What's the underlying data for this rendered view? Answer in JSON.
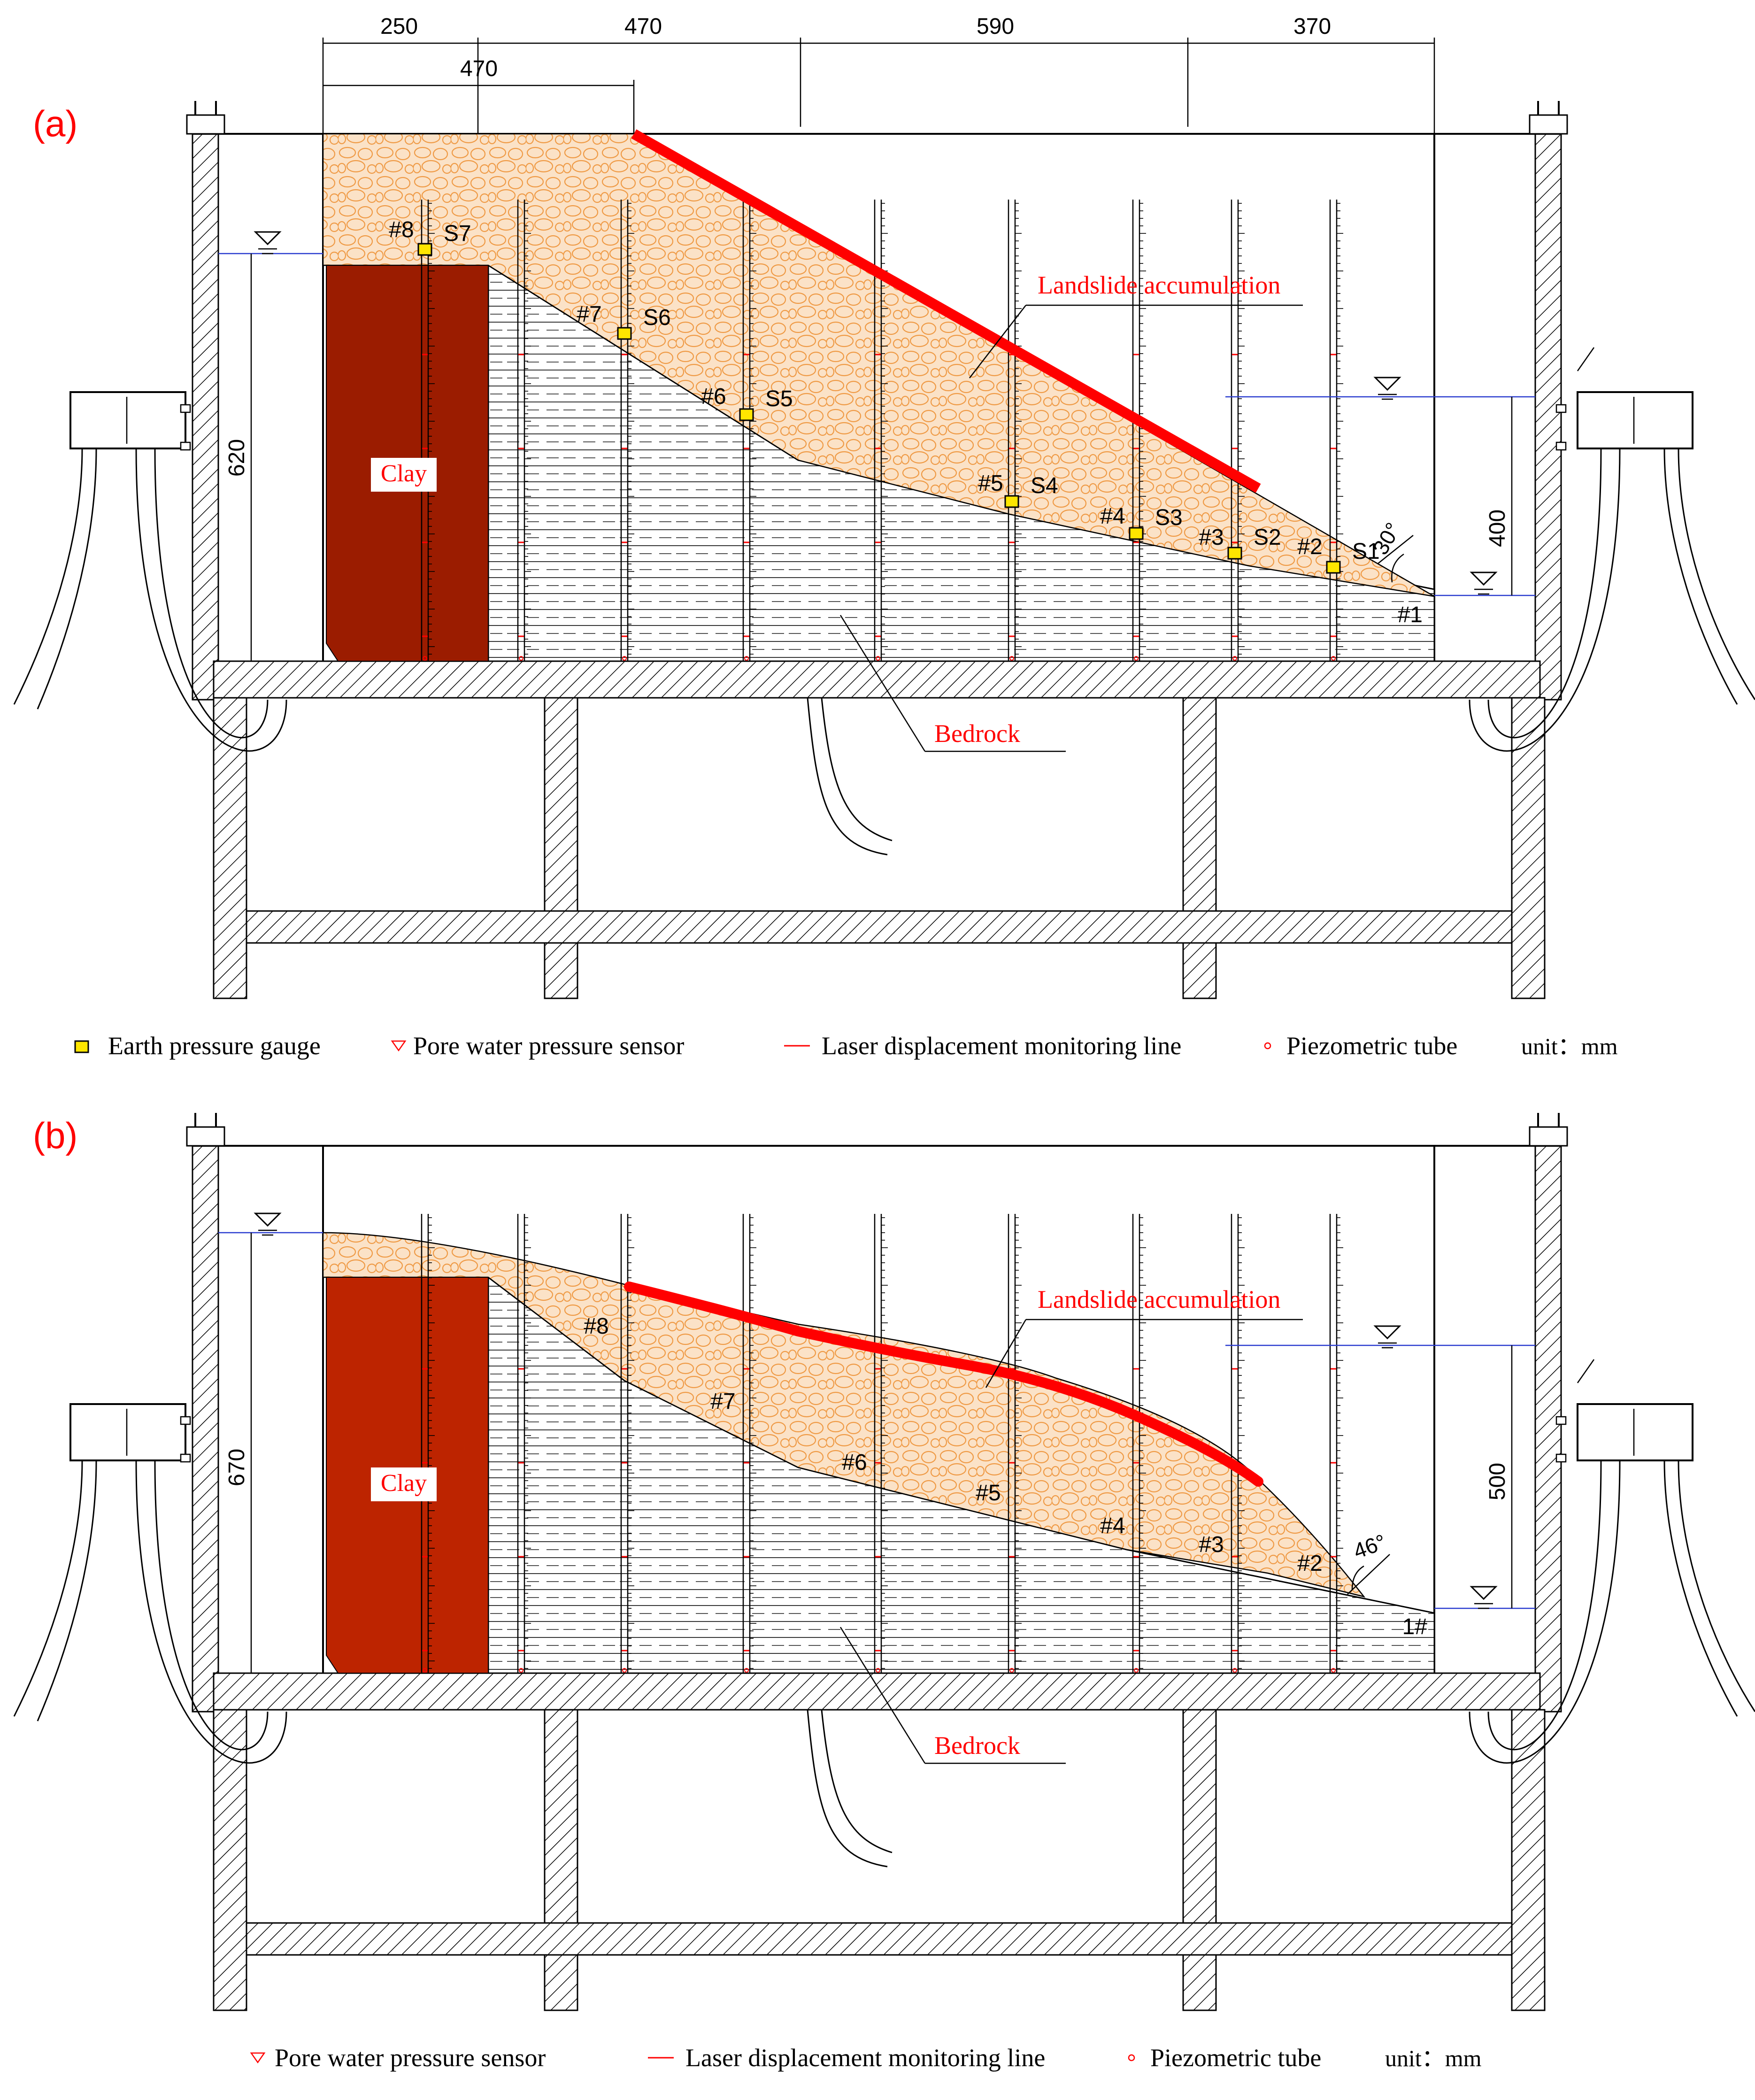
{
  "panels": [
    {
      "tag": "(a)",
      "dims_top": [
        "250",
        "470",
        "590",
        "370"
      ],
      "dim_sub": "470",
      "height_left": "620",
      "height_right": "400",
      "angle": "30°",
      "clay": "Clay",
      "landslide": "Landslide accumulation",
      "bedrock": "Bedrock",
      "tube_labels": [
        "#1",
        "#2",
        "#3",
        "#4",
        "#5",
        "#6",
        "#7",
        "#8"
      ],
      "gauge_labels": [
        "S1",
        "S2",
        "S3",
        "S4",
        "S5",
        "S6",
        "S7"
      ],
      "legend": {
        "earth_pressure": "Earth pressure gauge",
        "pore_water": "Pore water pressure sensor",
        "laser": "Laser displacement monitoring line",
        "piezo": "Piezometric tube",
        "unit": "unit：mm"
      }
    },
    {
      "tag": "(b)",
      "height_left": "670",
      "height_right": "500",
      "angle": "46°",
      "clay": "Clay",
      "landslide": "Landslide accumulation",
      "bedrock": "Bedrock",
      "tube_labels": [
        "1#",
        "#2",
        "#3",
        "#4",
        "#5",
        "#6",
        "#7",
        "#8"
      ],
      "legend": {
        "pore_water": "Pore water pressure sensor",
        "laser": "Laser displacement monitoring line",
        "piezo": "Piezometric tube",
        "unit": "unit：mm"
      }
    }
  ],
  "colors": {
    "accumulation_fill": "#fbe2c7",
    "accumulation_stroke": "#ef9a45",
    "clay_a": "#9b1c00",
    "clay_b": "#bd2400",
    "laser_line": "#ff0000",
    "water_line": "#2a3ccf",
    "gauge": "#ffe600",
    "label_red": "#ff0000"
  }
}
